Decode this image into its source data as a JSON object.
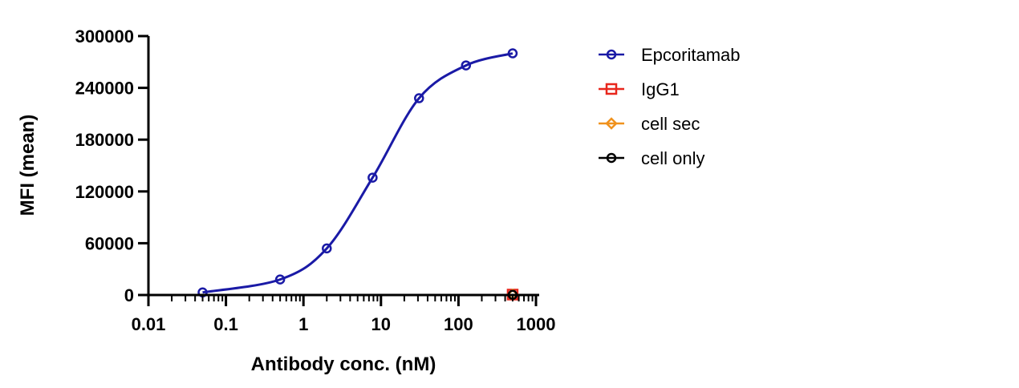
{
  "chart_data": {
    "type": "scatter",
    "xlabel": "Antibody conc. (nM)",
    "ylabel": "MFI (mean)",
    "xscale": "log",
    "xlim": [
      0.01,
      1000
    ],
    "ylim": [
      0,
      300000
    ],
    "xticks": [
      {
        "value": 0.01,
        "label": "0.01"
      },
      {
        "value": 0.1,
        "label": "0.1"
      },
      {
        "value": 1,
        "label": "1"
      },
      {
        "value": 10,
        "label": "10"
      },
      {
        "value": 100,
        "label": "100"
      },
      {
        "value": 1000,
        "label": "1000"
      }
    ],
    "yticks": [
      {
        "value": 0,
        "label": "0"
      },
      {
        "value": 60000,
        "label": "60000"
      },
      {
        "value": 120000,
        "label": "120000"
      },
      {
        "value": 180000,
        "label": "180000"
      },
      {
        "value": 240000,
        "label": "240000"
      },
      {
        "value": 300000,
        "label": "300000"
      }
    ],
    "grid": false,
    "legend_position": "right",
    "series": [
      {
        "name": "Epcoritamab",
        "color": "#1a1aa6",
        "marker": "circle",
        "fit_curve": true,
        "points": [
          {
            "x": 0.05,
            "y": 3000
          },
          {
            "x": 0.5,
            "y": 18000
          },
          {
            "x": 2,
            "y": 54000
          },
          {
            "x": 7.8,
            "y": 136000
          },
          {
            "x": 31,
            "y": 228000
          },
          {
            "x": 125,
            "y": 266000
          },
          {
            "x": 500,
            "y": 280000
          }
        ]
      },
      {
        "name": "IgG1",
        "color": "#e8261c",
        "marker": "square",
        "fit_curve": false,
        "points": [
          {
            "x": 500,
            "y": 500
          }
        ]
      },
      {
        "name": "cell sec",
        "color": "#f0921e",
        "marker": "diamond",
        "fit_curve": false,
        "points": [
          {
            "x": 500,
            "y": 300
          }
        ]
      },
      {
        "name": "cell only",
        "color": "#000000",
        "marker": "circle",
        "fit_curve": false,
        "points": [
          {
            "x": 500,
            "y": 200
          }
        ]
      }
    ]
  }
}
